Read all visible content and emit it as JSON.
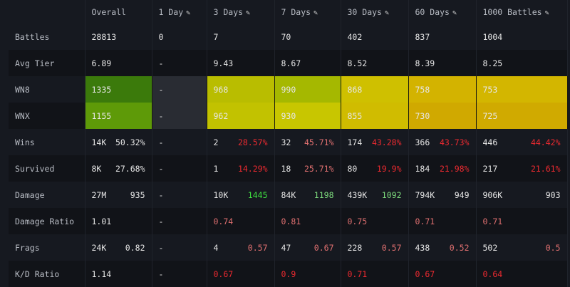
{
  "columns": [
    {
      "label": "Overall",
      "edit": false
    },
    {
      "label": "1 Day",
      "edit": true
    },
    {
      "label": "3 Days",
      "edit": true
    },
    {
      "label": "7 Days",
      "edit": true
    },
    {
      "label": "30 Days",
      "edit": true
    },
    {
      "label": "60 Days",
      "edit": true
    },
    {
      "label": "1000 Battles",
      "edit": true
    }
  ],
  "edit_icon": "pencil-icon",
  "rows": [
    {
      "label": "Battles",
      "cells": [
        {
          "a": "28813"
        },
        {
          "a": "0"
        },
        {
          "a": "7"
        },
        {
          "a": "70"
        },
        {
          "a": "402"
        },
        {
          "a": "837"
        },
        {
          "a": "1004"
        }
      ]
    },
    {
      "label": "Avg Tier",
      "cells": [
        {
          "a": "6.89"
        },
        {
          "a": "-"
        },
        {
          "a": "9.43"
        },
        {
          "a": "8.67"
        },
        {
          "a": "8.52"
        },
        {
          "a": "8.39"
        },
        {
          "a": "8.25"
        }
      ]
    },
    {
      "label": "WN8",
      "cells": [
        {
          "a": "1335",
          "bg": "#3b7a0b"
        },
        {
          "a": "-",
          "bg": "#292c33"
        },
        {
          "a": "968",
          "bg": "#b9bd00"
        },
        {
          "a": "990",
          "bg": "#a5b800"
        },
        {
          "a": "868",
          "bg": "#cfc000"
        },
        {
          "a": "758",
          "bg": "#d3b300"
        },
        {
          "a": "753",
          "bg": "#d3b600"
        }
      ]
    },
    {
      "label": "WNX",
      "cells": [
        {
          "a": "1155",
          "bg": "#5e9a08"
        },
        {
          "a": "-",
          "bg": "#292c33"
        },
        {
          "a": "962",
          "bg": "#c2c200"
        },
        {
          "a": "930",
          "bg": "#c8c600"
        },
        {
          "a": "855",
          "bg": "#d0bc00"
        },
        {
          "a": "730",
          "bg": "#d0a900"
        },
        {
          "a": "725",
          "bg": "#d0aa00"
        }
      ]
    },
    {
      "label": "Wins",
      "cells": [
        {
          "a": "14K",
          "b": "50.32%"
        },
        {
          "a": "-"
        },
        {
          "a": "2",
          "b": "28.57%",
          "bc": "red"
        },
        {
          "a": "32",
          "b": "45.71%",
          "bc": "pink"
        },
        {
          "a": "174",
          "b": "43.28%",
          "bc": "red"
        },
        {
          "a": "366",
          "b": "43.73%",
          "bc": "red"
        },
        {
          "a": "446",
          "b": "44.42%",
          "bc": "red"
        }
      ]
    },
    {
      "label": "Survived",
      "cells": [
        {
          "a": "8K",
          "b": "27.68%"
        },
        {
          "a": "-"
        },
        {
          "a": "1",
          "b": "14.29%",
          "bc": "red"
        },
        {
          "a": "18",
          "b": "25.71%",
          "bc": "pink"
        },
        {
          "a": "80",
          "b": "19.9%",
          "bc": "red"
        },
        {
          "a": "184",
          "b": "21.98%",
          "bc": "red"
        },
        {
          "a": "217",
          "b": "21.61%",
          "bc": "red"
        }
      ]
    },
    {
      "label": "Damage",
      "cells": [
        {
          "a": "27M",
          "b": "935"
        },
        {
          "a": "-"
        },
        {
          "a": "10K",
          "b": "1445",
          "bc": "grn"
        },
        {
          "a": "84K",
          "b": "1198",
          "bc": "lgrn"
        },
        {
          "a": "439K",
          "b": "1092",
          "bc": "lgrn"
        },
        {
          "a": "794K",
          "b": "949"
        },
        {
          "a": "906K",
          "b": "903"
        }
      ]
    },
    {
      "label": "Damage Ratio",
      "cells": [
        {
          "a": "1.01"
        },
        {
          "a": "-"
        },
        {
          "a": "0.74",
          "ac": "pink"
        },
        {
          "a": "0.81",
          "ac": "pink"
        },
        {
          "a": "0.75",
          "ac": "pink"
        },
        {
          "a": "0.71",
          "ac": "pink"
        },
        {
          "a": "0.71",
          "ac": "pink"
        }
      ]
    },
    {
      "label": "Frags",
      "cells": [
        {
          "a": "24K",
          "b": "0.82"
        },
        {
          "a": "-"
        },
        {
          "a": "4",
          "b": "0.57",
          "bc": "pink"
        },
        {
          "a": "47",
          "b": "0.67",
          "bc": "pink"
        },
        {
          "a": "228",
          "b": "0.57",
          "bc": "pink"
        },
        {
          "a": "438",
          "b": "0.52",
          "bc": "pink"
        },
        {
          "a": "502",
          "b": "0.5",
          "bc": "pink"
        }
      ]
    },
    {
      "label": "K/D Ratio",
      "cells": [
        {
          "a": "1.14"
        },
        {
          "a": "-"
        },
        {
          "a": "0.67",
          "ac": "red"
        },
        {
          "a": "0.9",
          "ac": "red"
        },
        {
          "a": "0.71",
          "ac": "red"
        },
        {
          "a": "0.67",
          "ac": "red"
        },
        {
          "a": "0.64",
          "ac": "red"
        }
      ]
    }
  ]
}
